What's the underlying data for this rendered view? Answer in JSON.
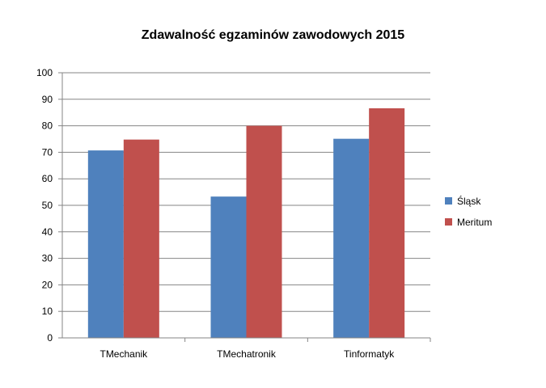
{
  "chart_data": {
    "type": "bar",
    "title": "Zdawalność egzaminów zawodowych 2015",
    "categories": [
      "TMechanik",
      "TMechatronik",
      "Tinformatyk"
    ],
    "series": [
      {
        "name": "Śląsk",
        "color": "#4F81BD",
        "values": [
          70.7,
          53.3,
          75.1
        ]
      },
      {
        "name": "Meritum",
        "color": "#C0504D",
        "values": [
          74.8,
          80.0,
          86.6
        ]
      }
    ],
    "ylim": [
      0,
      100
    ],
    "yticks": [
      0,
      10,
      20,
      30,
      40,
      50,
      60,
      70,
      80,
      90,
      100
    ],
    "grid": true,
    "legend": "right"
  }
}
